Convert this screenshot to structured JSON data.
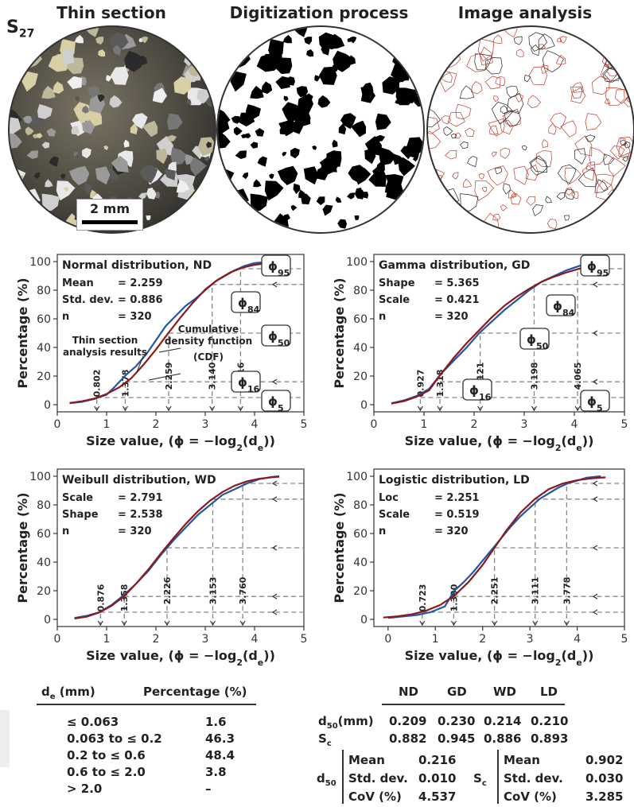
{
  "headers": {
    "thin": "Thin section",
    "digit": "Digitization process",
    "analysis": "Image analysis"
  },
  "sample": {
    "prefix": "S",
    "sub": "27"
  },
  "scale_bar": "2 mm",
  "colors": {
    "cdf": "#8b1a1a",
    "data": "#2455a6",
    "grid": "#888888"
  },
  "axis": {
    "x_title": "Size value, (ϕ = −log",
    "x_title_sub": "2",
    "x_title_tail": "(d",
    "x_title_e": "e",
    "x_title_end": "))",
    "y_title": "Percentage (%)"
  },
  "phi_labels": [
    "ϕ95",
    "ϕ84",
    "ϕ50",
    "ϕ16",
    "ϕ5"
  ],
  "chart_data": [
    {
      "type": "line",
      "title": "Normal distribution, ND",
      "params": [
        [
          "Mean",
          "= 2.259"
        ],
        [
          "Std. dev.",
          "= 0.886"
        ],
        [
          "n",
          "= 320"
        ]
      ],
      "xlim": [
        0,
        5
      ],
      "ylim": [
        0,
        100
      ],
      "xticks": [
        0,
        1,
        2,
        3,
        4,
        5
      ],
      "yticks": [
        0,
        20,
        40,
        60,
        80,
        100
      ],
      "percentiles": [
        {
          "p": 5,
          "x": 0.802
        },
        {
          "p": 16,
          "x": 1.378
        },
        {
          "p": 50,
          "x": 2.259
        },
        {
          "p": 84,
          "x": 3.14
        },
        {
          "p": 95,
          "x": 3.716
        }
      ],
      "annotations": [
        "Thin section",
        "analysis results",
        "Cumulative",
        "density function",
        "(CDF)"
      ],
      "series": [
        {
          "name": "Thin section analysis results",
          "x": [
            0.25,
            0.5,
            0.75,
            1.0,
            1.15,
            1.4,
            1.6,
            1.8,
            2.0,
            2.2,
            2.4,
            2.6,
            2.8,
            3.0,
            3.2,
            3.4,
            3.6,
            3.8,
            4.0,
            4.2,
            4.5
          ],
          "y": [
            1,
            2,
            4,
            7,
            12,
            21,
            27,
            35,
            45,
            55,
            62,
            69,
            74,
            80,
            86,
            90,
            94,
            97,
            99,
            99.5,
            100
          ]
        },
        {
          "name": "Cumulative density function (CDF)",
          "x": [
            0.25,
            0.5,
            0.75,
            1.0,
            1.25,
            1.5,
            1.75,
            2.0,
            2.25,
            2.5,
            2.75,
            3.0,
            3.25,
            3.5,
            3.75,
            4.0,
            4.25,
            4.5
          ],
          "y": [
            1.2,
            2.4,
            4.3,
            7.5,
            12,
            18.5,
            28,
            38.5,
            50,
            61,
            71.3,
            80.5,
            87.2,
            92.3,
            95.7,
            97.7,
            98.9,
            99.5
          ]
        }
      ]
    },
    {
      "type": "line",
      "title": "Gamma distribution, GD",
      "params": [
        [
          "Shape",
          "= 5.365"
        ],
        [
          "Scale",
          "= 0.421"
        ],
        [
          "n",
          "= 320"
        ]
      ],
      "xlim": [
        0,
        5
      ],
      "ylim": [
        0,
        100
      ],
      "xticks": [
        0,
        1,
        2,
        3,
        4,
        5
      ],
      "yticks": [
        0,
        20,
        40,
        60,
        80,
        100
      ],
      "percentiles": [
        {
          "p": 5,
          "x": 0.927
        },
        {
          "p": 16,
          "x": 1.318
        },
        {
          "p": 50,
          "x": 2.121
        },
        {
          "p": 84,
          "x": 3.198
        },
        {
          "p": 95,
          "x": 4.065
        }
      ],
      "series": [
        {
          "name": "Thin section analysis results",
          "x": [
            0.35,
            0.6,
            0.85,
            1.1,
            1.35,
            1.6,
            1.85,
            2.1,
            2.35,
            2.6,
            2.85,
            3.1,
            3.35,
            3.6,
            3.85,
            4.1,
            4.35,
            4.6
          ],
          "y": [
            1,
            3,
            6,
            11,
            22,
            31,
            40,
            50,
            58,
            66,
            73,
            80,
            86,
            90,
            94,
            97,
            99,
            100
          ]
        },
        {
          "name": "Cumulative density function (CDF)",
          "x": [
            0.35,
            0.6,
            0.85,
            1.1,
            1.35,
            1.6,
            1.85,
            2.1,
            2.35,
            2.6,
            2.85,
            3.1,
            3.35,
            3.6,
            3.85,
            4.1,
            4.35,
            4.6
          ],
          "y": [
            0.8,
            2.5,
            5.5,
            10,
            22,
            33,
            43,
            52,
            61,
            69,
            75.5,
            81,
            86,
            89.5,
            92.5,
            95,
            96.8,
            98
          ]
        }
      ]
    },
    {
      "type": "line",
      "title": "Weibull distribution, WD",
      "params": [
        [
          "Scale",
          "= 2.791"
        ],
        [
          "Shape",
          "= 2.538"
        ],
        [
          "n",
          "= 320"
        ]
      ],
      "xlim": [
        0,
        5
      ],
      "ylim": [
        0,
        100
      ],
      "xticks": [
        0,
        1,
        2,
        3,
        4,
        5
      ],
      "yticks": [
        0,
        20,
        40,
        60,
        80,
        100
      ],
      "percentiles": [
        {
          "p": 5,
          "x": 0.876
        },
        {
          "p": 16,
          "x": 1.358
        },
        {
          "p": 50,
          "x": 2.226
        },
        {
          "p": 84,
          "x": 3.153
        },
        {
          "p": 95,
          "x": 3.76
        }
      ],
      "series": [
        {
          "name": "Thin section analysis results",
          "x": [
            0.35,
            0.6,
            0.85,
            1.1,
            1.35,
            1.6,
            1.85,
            2.1,
            2.35,
            2.6,
            2.85,
            3.1,
            3.35,
            3.6,
            3.85,
            4.1,
            4.35,
            4.5
          ],
          "y": [
            1,
            2.5,
            5,
            10,
            17,
            25,
            34,
            45,
            55,
            64,
            73,
            80,
            87,
            91,
            95,
            98,
            99.5,
            100
          ]
        },
        {
          "name": "Cumulative density function (CDF)",
          "x": [
            0.35,
            0.6,
            0.85,
            1.1,
            1.35,
            1.6,
            1.85,
            2.1,
            2.35,
            2.6,
            2.85,
            3.1,
            3.35,
            3.6,
            3.85,
            4.1,
            4.35,
            4.5
          ],
          "y": [
            0.5,
            1.9,
            4.8,
            9.5,
            16,
            25,
            35,
            46,
            56.5,
            66.5,
            75.5,
            83,
            89,
            93.5,
            96.5,
            98.3,
            99.3,
            99.7
          ]
        }
      ]
    },
    {
      "type": "line",
      "title": "Logistic distribution, LD",
      "params": [
        [
          "Loc",
          "= 2.251"
        ],
        [
          "Scale",
          "= 0.519"
        ],
        [
          "n",
          "= 320"
        ]
      ],
      "xlim": [
        -0.3,
        5
      ],
      "ylim": [
        0,
        100
      ],
      "xticks": [
        0,
        1,
        2,
        3,
        4,
        5
      ],
      "yticks": [
        0,
        20,
        40,
        60,
        80,
        100
      ],
      "percentiles": [
        {
          "p": 5,
          "x": 0.723
        },
        {
          "p": 16,
          "x": 1.39
        },
        {
          "p": 50,
          "x": 2.251
        },
        {
          "p": 84,
          "x": 3.111
        },
        {
          "p": 95,
          "x": 3.778
        }
      ],
      "series": [
        {
          "name": "Thin section analysis results",
          "x": [
            0,
            0.3,
            0.6,
            0.9,
            1.2,
            1.4,
            1.6,
            1.8,
            2.0,
            2.2,
            2.4,
            2.6,
            2.8,
            3.0,
            3.2,
            3.4,
            3.6,
            3.8,
            4.0,
            4.2,
            4.5
          ],
          "y": [
            1,
            2,
            3,
            5,
            9,
            20,
            26,
            33,
            41,
            49,
            57,
            65,
            72,
            78,
            84,
            88,
            92,
            95,
            97,
            99,
            100
          ]
        },
        {
          "name": "Cumulative density function (CDF)",
          "x": [
            -0.1,
            0.2,
            0.5,
            0.8,
            1.1,
            1.4,
            1.7,
            2.0,
            2.25,
            2.5,
            2.8,
            3.1,
            3.4,
            3.7,
            4.0,
            4.3,
            4.6
          ],
          "y": [
            1.3,
            2.1,
            3.5,
            6,
            10,
            16.5,
            26,
            38,
            50,
            62,
            74.5,
            84,
            91,
            95,
            97.3,
            98.5,
            99.2
          ]
        }
      ]
    }
  ],
  "left_table": {
    "header": [
      "d",
      "e",
      " (mm)",
      "Percentage (%)"
    ],
    "rows": [
      [
        "≤ 0.063",
        "1.6"
      ],
      [
        "0.063 to ≤ 0.2",
        "46.3"
      ],
      [
        "0.2 to ≤ 0.6",
        "48.4"
      ],
      [
        "0.6 to ≤ 2.0",
        "3.8"
      ],
      [
        "> 2.0",
        "–"
      ]
    ]
  },
  "right_table": {
    "cols": [
      "ND",
      "GD",
      "WD",
      "LD"
    ],
    "d50_label": "d",
    "d50_sub": "50",
    "d50_unit": "(mm)",
    "d50": [
      "0.209",
      "0.230",
      "0.214",
      "0.210"
    ],
    "sc_label": "S",
    "sc_sub": "c",
    "sc": [
      "0.882",
      "0.945",
      "0.886",
      "0.893"
    ],
    "stats_labels": [
      "Mean",
      "Std. dev.",
      "CoV (%)"
    ],
    "d50_stats": [
      "0.216",
      "0.010",
      "4.537"
    ],
    "sc_stats": [
      "0.902",
      "0.030",
      "3.285"
    ]
  }
}
